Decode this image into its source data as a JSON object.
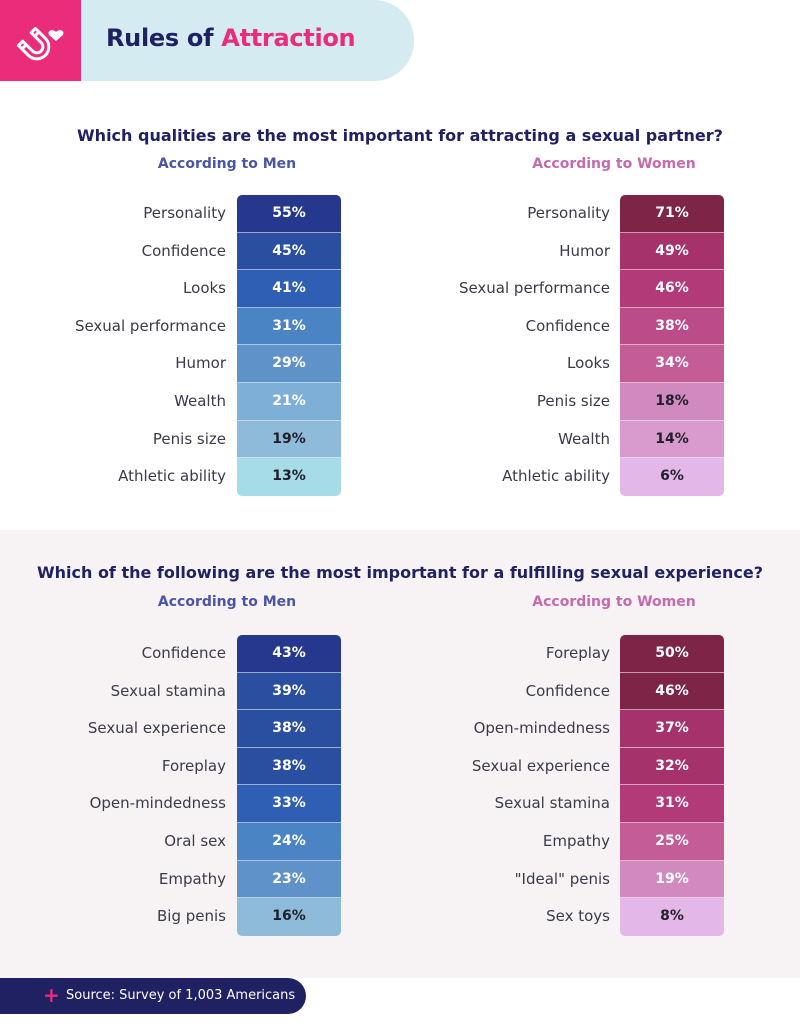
{
  "header": {
    "title_plain": "Rules of ",
    "title_accent": "Attraction",
    "icon": "magnet-heart-icon"
  },
  "colors": {
    "brand_pink": "#ea2c7a",
    "navy": "#1f2163",
    "men_title": "#4a55a8",
    "women_title": "#c56aac",
    "men_scale": [
      "#26388e",
      "#2a4ea0",
      "#2f5fb4",
      "#4a84c4",
      "#5f92c8",
      "#7eafd6",
      "#8fbbdb",
      "#a5dce8"
    ],
    "women_scale": [
      "#7e2447",
      "#a5326b",
      "#b23a79",
      "#bc4b8a",
      "#c35c97",
      "#d18ac0",
      "#d99bcd",
      "#e3b7e8"
    ]
  },
  "chart_data": [
    {
      "type": "table",
      "title": "Which qualities are the most important for attracting a sexual partner?",
      "panels": [
        {
          "name": "According to Men",
          "categories": [
            "Personality",
            "Confidence",
            "Looks",
            "Sexual performance",
            "Humor",
            "Wealth",
            "Penis size",
            "Athletic ability"
          ],
          "values": [
            55,
            45,
            41,
            31,
            29,
            21,
            19,
            13
          ],
          "labels": [
            "55%",
            "45%",
            "41%",
            "31%",
            "29%",
            "21%",
            "19%",
            "13%"
          ]
        },
        {
          "name": "According to Women",
          "categories": [
            "Personality",
            "Humor",
            "Sexual performance",
            "Confidence",
            "Looks",
            "Penis size",
            "Wealth",
            "Athletic ability"
          ],
          "values": [
            71,
            49,
            46,
            38,
            34,
            18,
            14,
            6
          ],
          "labels": [
            "71%",
            "49%",
            "46%",
            "38%",
            "34%",
            "18%",
            "14%",
            "6%"
          ]
        }
      ]
    },
    {
      "type": "table",
      "title": "Which of the following are the most important for a fulfilling sexual experience?",
      "panels": [
        {
          "name": "According to Men",
          "categories": [
            "Confidence",
            "Sexual stamina",
            "Sexual experience",
            "Foreplay",
            "Open-mindedness",
            "Oral sex",
            "Empathy",
            "Big penis"
          ],
          "values": [
            43,
            39,
            38,
            38,
            33,
            24,
            23,
            16
          ],
          "labels": [
            "43%",
            "39%",
            "38%",
            "38%",
            "33%",
            "24%",
            "23%",
            "16%"
          ]
        },
        {
          "name": "According to Women",
          "categories": [
            "Foreplay",
            "Confidence",
            "Open-mindedness",
            "Sexual experience",
            "Sexual stamina",
            "Empathy",
            "\"Ideal\" penis",
            "Sex toys"
          ],
          "values": [
            50,
            46,
            37,
            32,
            31,
            25,
            19,
            8
          ],
          "labels": [
            "50%",
            "46%",
            "37%",
            "32%",
            "31%",
            "25%",
            "19%",
            "8%"
          ]
        }
      ]
    }
  ],
  "footer": {
    "source": "Source: Survey of 1,003 Americans",
    "plus": "+"
  }
}
